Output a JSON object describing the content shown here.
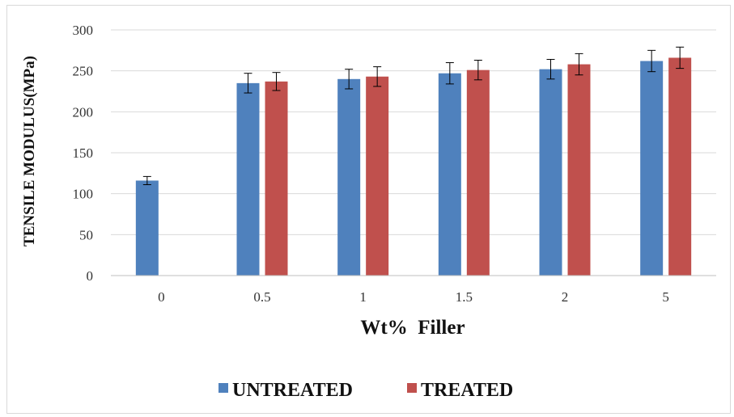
{
  "chart_data": {
    "type": "bar",
    "title": "",
    "xlabel": "Wt%  Filler",
    "ylabel": "TENSILE MODULUS(MPa)",
    "ylim": [
      0,
      300
    ],
    "yticks": [
      0,
      50,
      100,
      150,
      200,
      250,
      300
    ],
    "categories": [
      "0",
      "0.5",
      "1",
      "1.5",
      "2",
      "5"
    ],
    "series": [
      {
        "name": "UNTREATED",
        "color": "#4f81bd",
        "values": [
          116,
          235,
          240,
          247,
          252,
          262
        ],
        "errors": [
          5,
          12,
          12,
          13,
          12,
          13
        ]
      },
      {
        "name": "TREATED",
        "color": "#c0504d",
        "values": [
          null,
          237,
          243,
          251,
          258,
          266
        ],
        "errors": [
          null,
          11,
          12,
          12,
          13,
          13
        ]
      }
    ],
    "grid": true,
    "legend_position": "bottom"
  }
}
